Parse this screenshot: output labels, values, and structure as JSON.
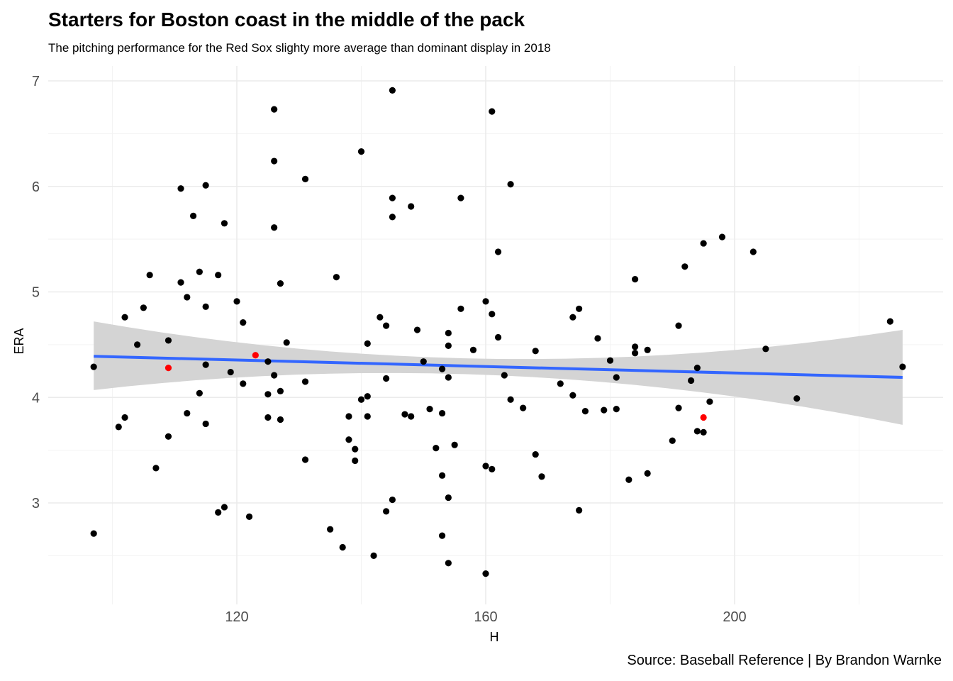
{
  "chart_data": {
    "type": "scatter",
    "title": "Starters for Boston coast in the middle of the pack",
    "subtitle": "The pitching performance for the Red Sox slighty more average than dominant display in 2018",
    "caption": "Source: Baseball Reference | By Brandon Warnke",
    "xlabel": "H",
    "ylabel": "ERA",
    "xlim": [
      94,
      229
    ],
    "ylim": [
      2.1,
      7.15
    ],
    "x_ticks": [
      120,
      160,
      200
    ],
    "y_ticks": [
      3,
      4,
      5,
      6,
      7
    ],
    "grid": true,
    "colors": {
      "points": "#000000",
      "highlight": "#ff0000",
      "trend": "#3366ff",
      "band": "#d4d4d4",
      "grid": "#ebebeb"
    },
    "series": [
      {
        "name": "",
        "color": "#000000",
        "points": [
          [
            97,
            4.29
          ],
          [
            97,
            2.71
          ],
          [
            101,
            3.72
          ],
          [
            102,
            3.81
          ],
          [
            102,
            4.76
          ],
          [
            104,
            4.5
          ],
          [
            105,
            4.85
          ],
          [
            106,
            5.16
          ],
          [
            107,
            3.33
          ],
          [
            109,
            4.54
          ],
          [
            109,
            3.63
          ],
          [
            111,
            5.98
          ],
          [
            111,
            5.09
          ],
          [
            112,
            4.95
          ],
          [
            112,
            3.85
          ],
          [
            113,
            5.72
          ],
          [
            114,
            5.19
          ],
          [
            114,
            4.04
          ],
          [
            115,
            6.01
          ],
          [
            115,
            4.86
          ],
          [
            115,
            4.31
          ],
          [
            115,
            3.75
          ],
          [
            117,
            5.16
          ],
          [
            117,
            2.91
          ],
          [
            118,
            5.65
          ],
          [
            118,
            2.96
          ],
          [
            119,
            4.24
          ],
          [
            120,
            4.91
          ],
          [
            121,
            4.71
          ],
          [
            121,
            4.13
          ],
          [
            122,
            2.87
          ],
          [
            125,
            4.34
          ],
          [
            125,
            4.03
          ],
          [
            125,
            3.81
          ],
          [
            126,
            6.73
          ],
          [
            126,
            6.24
          ],
          [
            126,
            5.61
          ],
          [
            126,
            4.21
          ],
          [
            127,
            5.08
          ],
          [
            127,
            4.06
          ],
          [
            127,
            3.79
          ],
          [
            128,
            4.52
          ],
          [
            131,
            6.07
          ],
          [
            131,
            4.15
          ],
          [
            131,
            3.41
          ],
          [
            135,
            2.75
          ],
          [
            136,
            5.14
          ],
          [
            137,
            2.58
          ],
          [
            138,
            3.82
          ],
          [
            138,
            3.6
          ],
          [
            139,
            3.51
          ],
          [
            139,
            3.4
          ],
          [
            140,
            6.33
          ],
          [
            140,
            3.98
          ],
          [
            141,
            4.51
          ],
          [
            141,
            4.01
          ],
          [
            141,
            3.82
          ],
          [
            142,
            2.5
          ],
          [
            143,
            4.76
          ],
          [
            144,
            4.68
          ],
          [
            144,
            4.18
          ],
          [
            144,
            2.92
          ],
          [
            145,
            6.91
          ],
          [
            145,
            5.89
          ],
          [
            145,
            5.71
          ],
          [
            145,
            3.03
          ],
          [
            147,
            3.84
          ],
          [
            148,
            5.81
          ],
          [
            148,
            3.82
          ],
          [
            149,
            4.64
          ],
          [
            150,
            4.34
          ],
          [
            151,
            3.89
          ],
          [
            152,
            3.52
          ],
          [
            153,
            4.27
          ],
          [
            153,
            3.85
          ],
          [
            153,
            3.26
          ],
          [
            153,
            2.69
          ],
          [
            154,
            4.61
          ],
          [
            154,
            4.49
          ],
          [
            154,
            4.19
          ],
          [
            154,
            3.05
          ],
          [
            154,
            2.43
          ],
          [
            155,
            3.55
          ],
          [
            156,
            5.89
          ],
          [
            156,
            4.84
          ],
          [
            158,
            4.45
          ],
          [
            160,
            4.91
          ],
          [
            160,
            3.35
          ],
          [
            160,
            2.33
          ],
          [
            161,
            6.71
          ],
          [
            161,
            4.79
          ],
          [
            161,
            3.32
          ],
          [
            162,
            5.38
          ],
          [
            162,
            4.57
          ],
          [
            163,
            4.21
          ],
          [
            164,
            6.02
          ],
          [
            164,
            3.98
          ],
          [
            166,
            3.9
          ],
          [
            168,
            4.44
          ],
          [
            168,
            3.46
          ],
          [
            169,
            3.25
          ],
          [
            172,
            4.13
          ],
          [
            174,
            4.76
          ],
          [
            174,
            4.02
          ],
          [
            175,
            4.84
          ],
          [
            175,
            2.93
          ],
          [
            176,
            3.87
          ],
          [
            178,
            4.56
          ],
          [
            179,
            3.88
          ],
          [
            180,
            4.35
          ],
          [
            181,
            4.19
          ],
          [
            181,
            3.89
          ],
          [
            183,
            3.22
          ],
          [
            184,
            5.12
          ],
          [
            184,
            4.48
          ],
          [
            184,
            4.42
          ],
          [
            186,
            4.45
          ],
          [
            186,
            3.28
          ],
          [
            190,
            3.59
          ],
          [
            191,
            4.68
          ],
          [
            191,
            3.9
          ],
          [
            192,
            5.24
          ],
          [
            193,
            4.16
          ],
          [
            194,
            4.28
          ],
          [
            194,
            3.68
          ],
          [
            195,
            5.46
          ],
          [
            195,
            3.67
          ],
          [
            196,
            3.96
          ],
          [
            198,
            5.52
          ],
          [
            203,
            5.38
          ],
          [
            205,
            4.46
          ],
          [
            210,
            3.99
          ],
          [
            225,
            4.72
          ],
          [
            227,
            4.29
          ]
        ]
      },
      {
        "name": "",
        "color": "#ff0000",
        "points": [
          [
            109,
            4.28
          ],
          [
            123,
            4.4
          ],
          [
            195,
            3.81
          ]
        ]
      }
    ],
    "trend": {
      "type": "linear",
      "color": "#3366ff",
      "x": [
        97,
        227
      ],
      "y": [
        4.39,
        4.19
      ],
      "band_lower": [
        4.07,
        3.74
      ],
      "band_upper": [
        4.72,
        4.64
      ],
      "band_mid_x": 157,
      "band_mid_lower": 4.22,
      "band_mid_upper": 4.37
    }
  }
}
